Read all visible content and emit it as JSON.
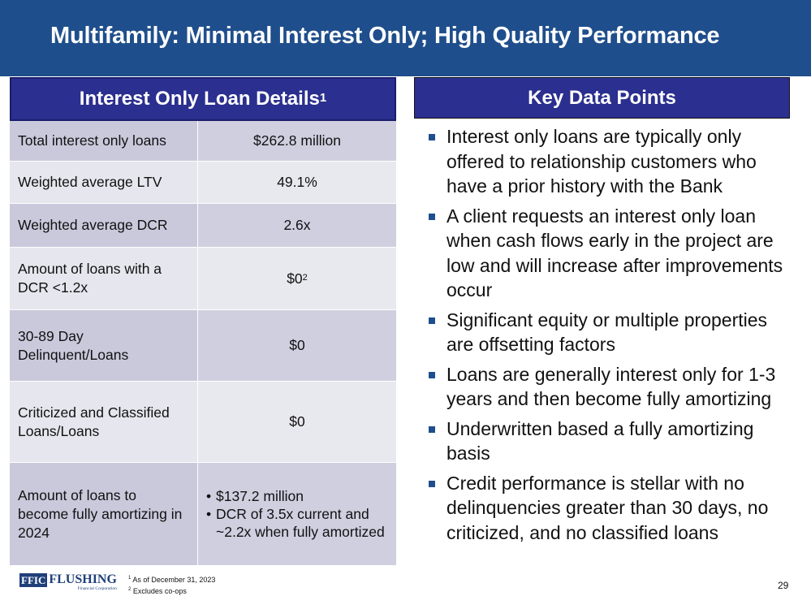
{
  "title": "Multifamily: Minimal Interest Only; High Quality Performance",
  "table": {
    "header": "Interest Only Loan Details",
    "header_sup": "1",
    "rows": [
      {
        "label": "Total interest only loans",
        "value": "$262.8 million"
      },
      {
        "label": "Weighted average LTV",
        "value": "49.1%"
      },
      {
        "label": "Weighted average DCR",
        "value": "2.6x"
      },
      {
        "label": "Amount of loans with a DCR <1.2x",
        "value": "$0",
        "value_sup": "2"
      },
      {
        "label": "30-89 Day Delinquent/Loans",
        "value": "$0"
      },
      {
        "label": "Criticized and Classified Loans/Loans",
        "value": "$0"
      },
      {
        "label": "Amount of loans to become fully amortizing in 2024",
        "bullets": [
          "$137.2 million",
          "DCR of 3.5x current and ~2.2x when fully amortized"
        ]
      }
    ]
  },
  "key_data": {
    "header": "Key Data Points",
    "items": [
      "Interest only loans are typically only offered to relationship customers who have a prior history with the Bank",
      "A client requests an interest only loan when cash flows early in the project are low and will increase after improvements occur",
      "Significant equity or multiple properties are offsetting factors",
      "Loans are generally interest only for 1-3 years and then become fully amortizing",
      "Underwritten based a fully amortizing basis",
      "Credit performance is stellar with no delinquencies greater than 30 days, no criticized, and no classified loans"
    ]
  },
  "footer": {
    "logo_box": "FFIC",
    "logo_main": "FLUSHING",
    "logo_sub": "Financial Corporation",
    "footnote1_num": "1",
    "footnote1": "As of December 31, 2023",
    "footnote2_num": "2",
    "footnote2": "Excludes co-ops",
    "page_number": "29"
  },
  "colors": {
    "title_bar": "#1f4e8c",
    "header_fill": "#2b2f8f",
    "bullet_square": "#1f4e8c"
  }
}
